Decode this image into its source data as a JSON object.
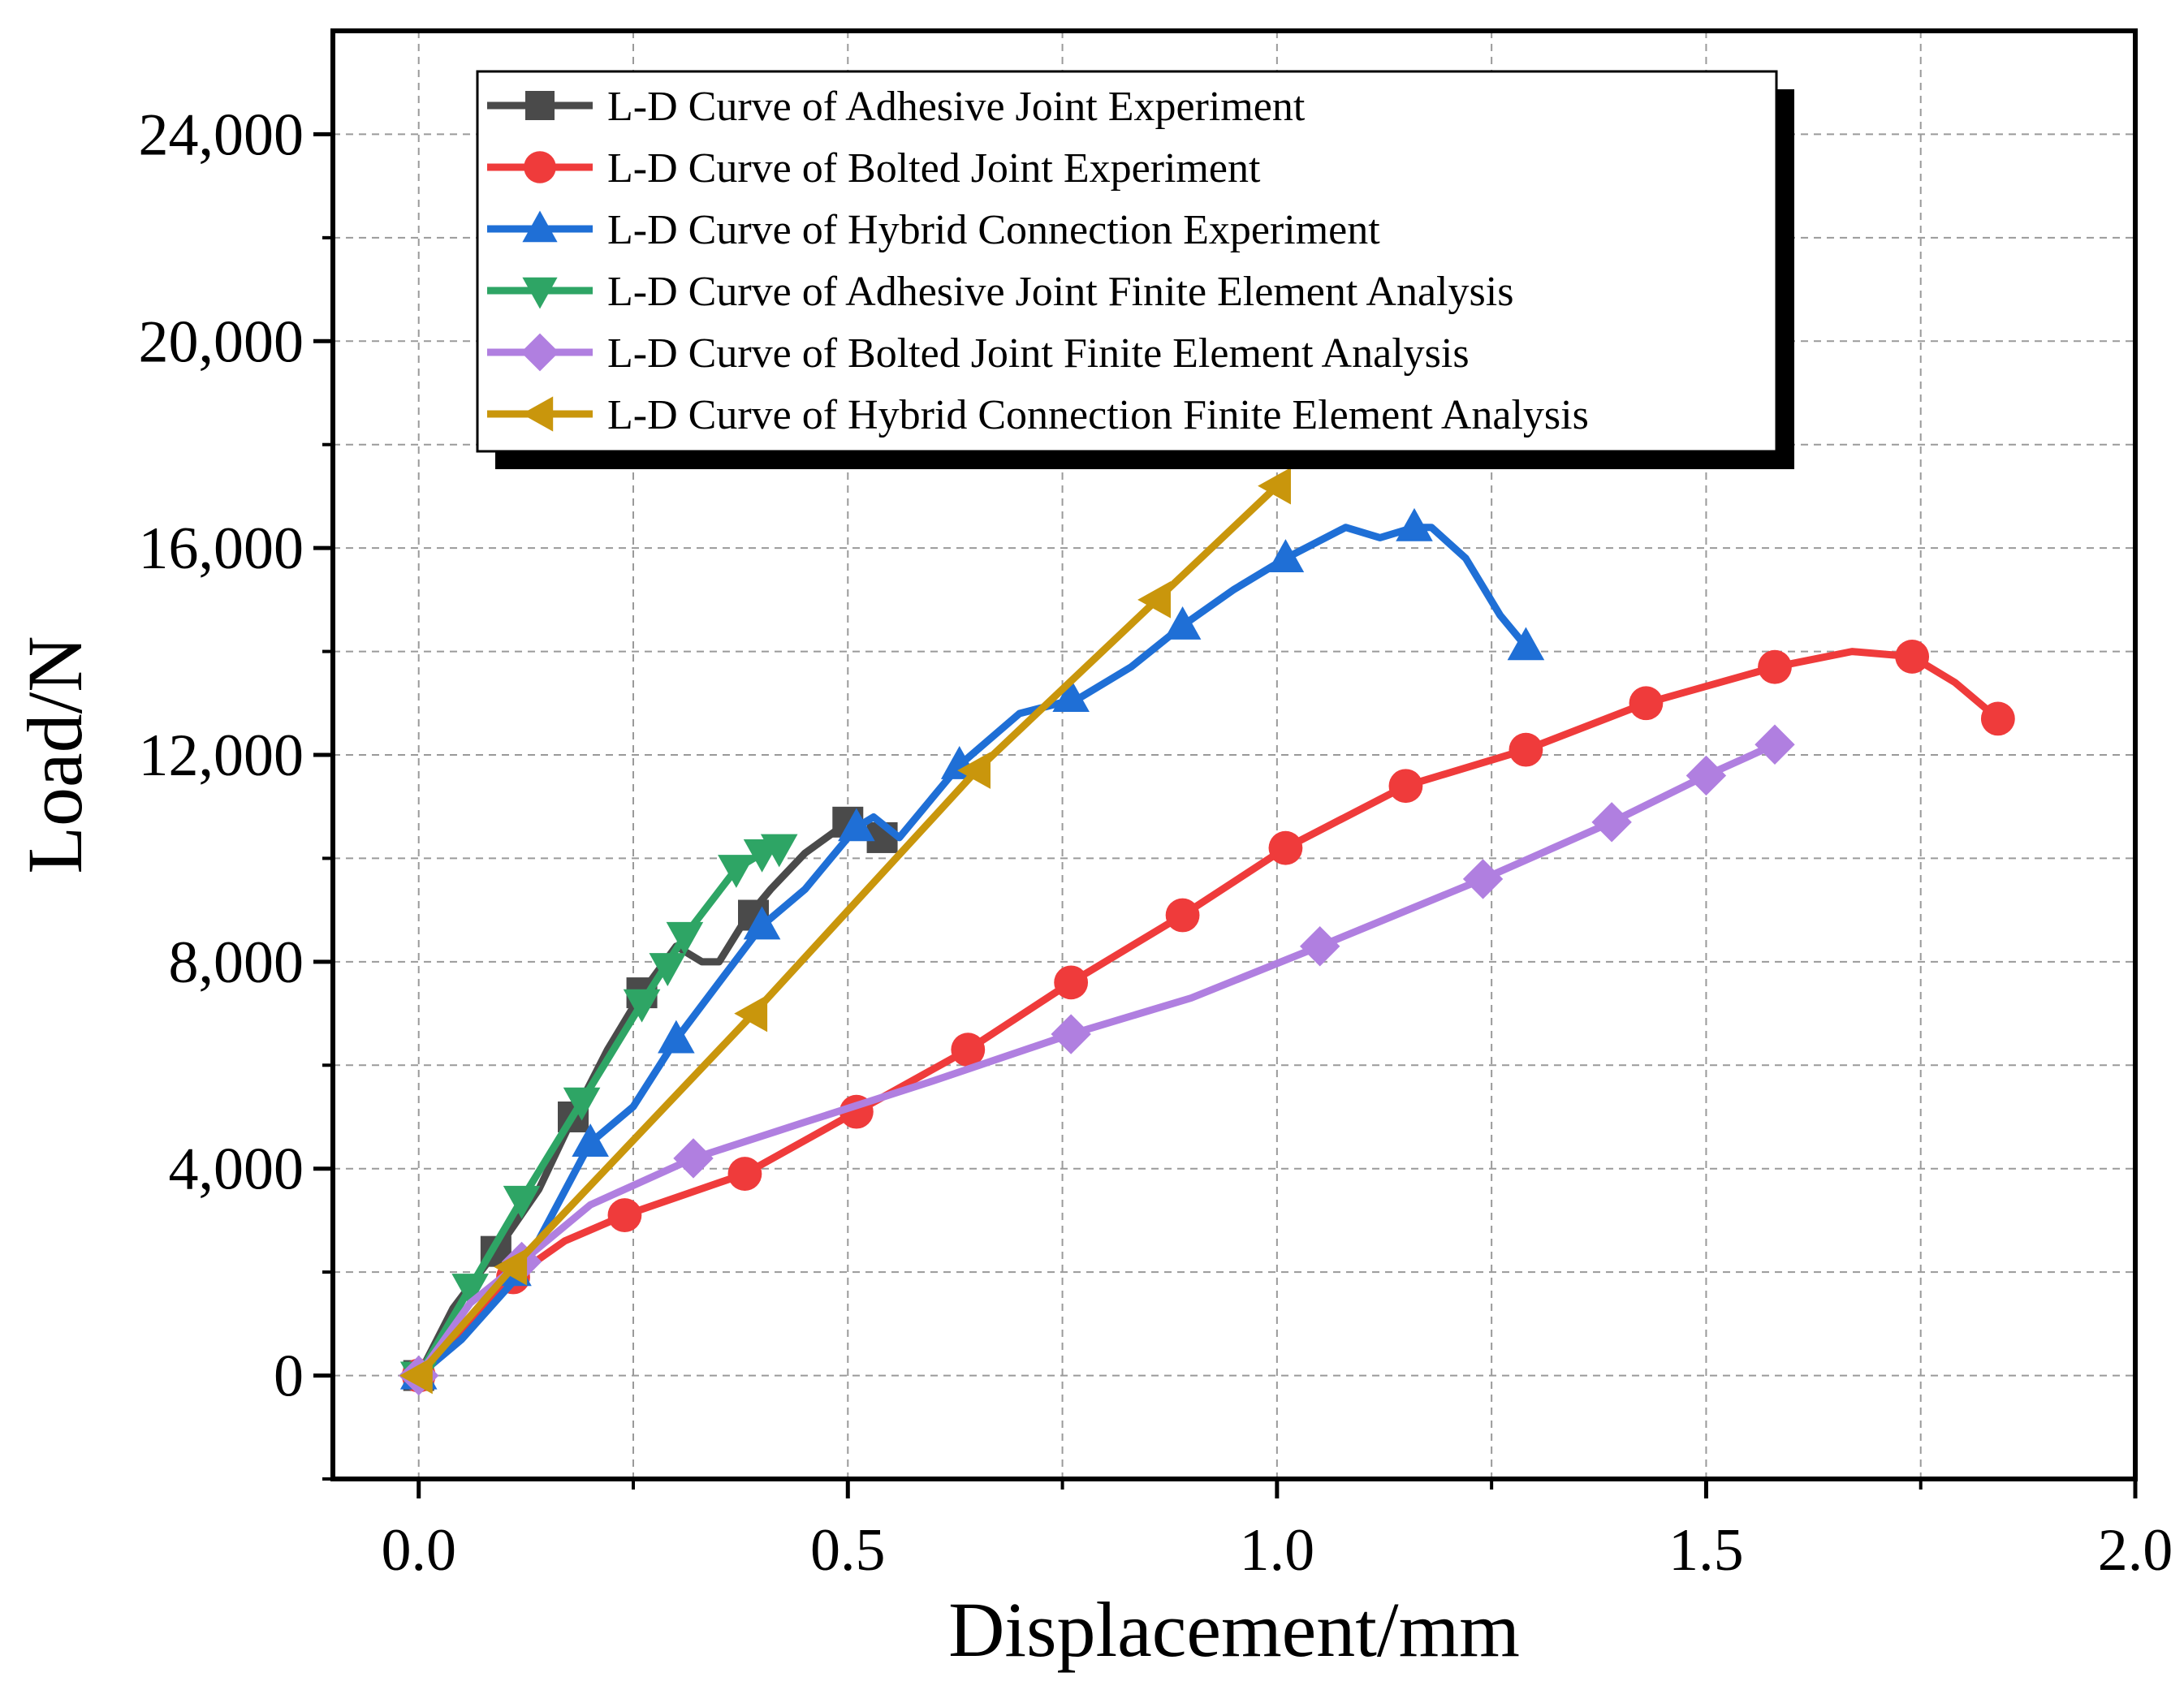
{
  "chart_data": {
    "type": "line",
    "title": "",
    "xlabel": "Displacement/mm",
    "ylabel": "Load/N",
    "xlim": [
      -0.1,
      2.0
    ],
    "ylim": [
      -2000,
      26000
    ],
    "x_ticks": [
      0.0,
      0.5,
      1.0,
      1.5,
      2.0
    ],
    "x_tick_labels": [
      "0.0",
      "0.5",
      "1.0",
      "1.5",
      "2.0"
    ],
    "y_ticks": [
      0,
      4000,
      8000,
      12000,
      16000,
      20000,
      24000
    ],
    "y_tick_labels": [
      "0",
      "4,000",
      "8,000",
      "12,000",
      "16,000",
      "20,000",
      "24,000"
    ],
    "grid": true,
    "legend_position": "top",
    "series": [
      {
        "name": "L-D Curve of Adhesive Joint Experiment",
        "color": "#4a4a4a",
        "marker": "square",
        "x": [
          0.0,
          0.04,
          0.09,
          0.14,
          0.18,
          0.22,
          0.26,
          0.3,
          0.33,
          0.35,
          0.38,
          0.41,
          0.45,
          0.5,
          0.54
        ],
        "y": [
          0,
          1300,
          2400,
          3600,
          5000,
          6300,
          7400,
          8300,
          8000,
          8000,
          8800,
          9400,
          10100,
          10700,
          10400
        ],
        "marker_points": [
          [
            0.0,
            0
          ],
          [
            0.09,
            2400
          ],
          [
            0.18,
            5000
          ],
          [
            0.26,
            7400
          ],
          [
            0.39,
            8900
          ],
          [
            0.5,
            10700
          ],
          [
            0.54,
            10400
          ]
        ]
      },
      {
        "name": "L-D Curve of Bolted Joint Experiment",
        "color": "#ef3b3b",
        "marker": "circle",
        "x": [
          0.0,
          0.06,
          0.11,
          0.17,
          0.24,
          0.31,
          0.38,
          0.51,
          0.64,
          0.76,
          0.89,
          1.01,
          1.15,
          1.29,
          1.43,
          1.58,
          1.67,
          1.74,
          1.79,
          1.84
        ],
        "y": [
          0,
          1000,
          1900,
          2600,
          3100,
          3500,
          3900,
          5100,
          6300,
          7600,
          8900,
          10200,
          11400,
          12100,
          13000,
          13700,
          14000,
          13900,
          13400,
          12700
        ],
        "marker_points": [
          [
            0.0,
            0
          ],
          [
            0.11,
            1900
          ],
          [
            0.24,
            3100
          ],
          [
            0.38,
            3900
          ],
          [
            0.51,
            5100
          ],
          [
            0.64,
            6300
          ],
          [
            0.76,
            7600
          ],
          [
            0.89,
            8900
          ],
          [
            1.01,
            10200
          ],
          [
            1.15,
            11400
          ],
          [
            1.29,
            12100
          ],
          [
            1.43,
            13000
          ],
          [
            1.58,
            13700
          ],
          [
            1.74,
            13900
          ],
          [
            1.84,
            12700
          ]
        ]
      },
      {
        "name": "L-D Curve of Hybrid Connection Experiment",
        "color": "#1f6fd6",
        "marker": "triangle-up",
        "x": [
          0.0,
          0.05,
          0.12,
          0.2,
          0.25,
          0.3,
          0.35,
          0.4,
          0.45,
          0.51,
          0.53,
          0.56,
          0.63,
          0.7,
          0.77,
          0.83,
          0.89,
          0.95,
          1.01,
          1.08,
          1.12,
          1.16,
          1.18,
          1.22,
          1.26,
          1.29
        ],
        "y": [
          0,
          700,
          2000,
          4500,
          5200,
          6500,
          7600,
          8700,
          9400,
          10600,
          10800,
          10400,
          11800,
          12800,
          13100,
          13700,
          14500,
          15200,
          15800,
          16400,
          16200,
          16400,
          16400,
          15800,
          14700,
          14100
        ],
        "marker_points": [
          [
            0.0,
            0
          ],
          [
            0.11,
            2000
          ],
          [
            0.2,
            4500
          ],
          [
            0.3,
            6500
          ],
          [
            0.4,
            8700
          ],
          [
            0.51,
            10600
          ],
          [
            0.63,
            11800
          ],
          [
            0.76,
            13100
          ],
          [
            0.89,
            14500
          ],
          [
            1.01,
            15800
          ],
          [
            1.16,
            16400
          ],
          [
            1.29,
            14100
          ]
        ]
      },
      {
        "name": "L-D Curve of Adhesive Joint Finite Element Analysis",
        "color": "#2ea565",
        "marker": "triangle-down",
        "x": [
          0.0,
          0.06,
          0.12,
          0.19,
          0.26,
          0.31,
          0.37,
          0.4,
          0.42
        ],
        "y": [
          0,
          1700,
          3400,
          5300,
          7200,
          8500,
          9800,
          10100,
          10200
        ],
        "marker_points": [
          [
            0.0,
            0
          ],
          [
            0.06,
            1700
          ],
          [
            0.12,
            3400
          ],
          [
            0.19,
            5300
          ],
          [
            0.26,
            7200
          ],
          [
            0.29,
            7900
          ],
          [
            0.31,
            8500
          ],
          [
            0.37,
            9800
          ],
          [
            0.4,
            10100
          ],
          [
            0.42,
            10200
          ]
        ]
      },
      {
        "name": "L-D Curve of Bolted Joint Finite Element Analysis",
        "color": "#b07fe0",
        "marker": "diamond",
        "x": [
          0.0,
          0.06,
          0.12,
          0.2,
          0.32,
          0.45,
          0.6,
          0.76,
          0.9,
          1.05,
          1.24,
          1.39,
          1.5,
          1.58
        ],
        "y": [
          0,
          1400,
          2200,
          3300,
          4200,
          4900,
          5700,
          6600,
          7300,
          8300,
          9600,
          10700,
          11600,
          12200
        ],
        "marker_points": [
          [
            0.0,
            0
          ],
          [
            0.12,
            2200
          ],
          [
            0.32,
            4200
          ],
          [
            0.76,
            6600
          ],
          [
            1.05,
            8300
          ],
          [
            1.24,
            9600
          ],
          [
            1.39,
            10700
          ],
          [
            1.5,
            11600
          ],
          [
            1.58,
            12200
          ]
        ]
      },
      {
        "name": "L-D Curve of Hybrid Connection Finite Element Analysis",
        "color": "#c9960c",
        "marker": "triangle-left",
        "x": [
          0.0,
          0.11,
          0.39,
          0.65,
          0.86,
          1.0
        ],
        "y": [
          0,
          2100,
          7000,
          11700,
          15000,
          17200
        ],
        "marker_points": [
          [
            0.0,
            0
          ],
          [
            0.11,
            2100
          ],
          [
            0.39,
            7000
          ],
          [
            0.65,
            11700
          ],
          [
            0.86,
            15000
          ],
          [
            1.0,
            17200
          ]
        ]
      }
    ]
  }
}
